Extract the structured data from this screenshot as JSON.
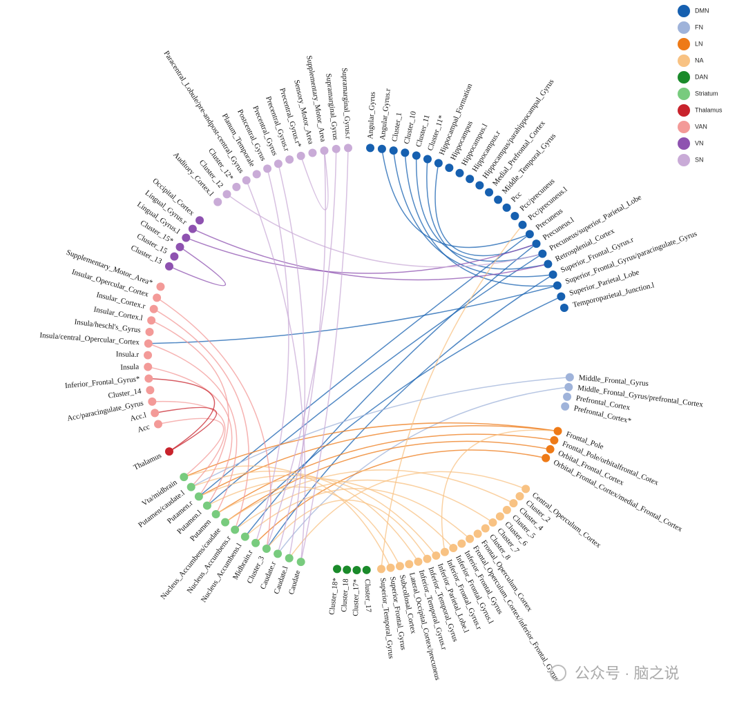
{
  "groups": [
    {
      "name": "DMN",
      "color": "#1660b0",
      "nodes": [
        "Angular_Gyrus",
        "Angular_Gyrus.r",
        "Cluster_1",
        "Cluster_10",
        "Cluster_11",
        "Cluster_11*",
        "Hippocampal_Formation",
        "Hippocampus",
        "Hippocampus.l",
        "Hippocampus.r",
        "Hippocampus/parahippocampal_Gyrus",
        "Medial_Prefrontal_Cortex",
        "Middle_Temporal_Gyrus",
        "Pcc",
        "Pcc/precuneus",
        "Pcc/precuneus.l",
        "Precuneus",
        "Precuneus.l",
        "Precuneus/superior_Parietal_Lobe",
        "Retrosplenial_Cortex",
        "Superior_Frontal_Gyrus.r",
        "Superior_Frontal_Gyrus/paracingulate_Gyrus",
        "Superior_Parietal_Lobe",
        "Temporoparietal_Junction.l"
      ]
    },
    {
      "name": "FN",
      "color": "#9fb3da",
      "nodes": [
        "Middle_Frontal_Gyrus",
        "Middle_Frontal_Gyrus/prefrontal_Cortex",
        "Prefrontal_Cortex",
        "Prefrontal_Cortex*"
      ]
    },
    {
      "name": "LN",
      "color": "#ee7a17",
      "nodes": [
        "Frontal_Pole",
        "Frontal_Pole/orbitalfrontal_Cotex",
        "Orbital_Frontal_Cortex",
        "Orbital_Frontal_Cortex/medial_Frontal_Cortex"
      ]
    },
    {
      "name": "NA",
      "color": "#f8c283",
      "nodes": [
        "Central_Operculum_Cortex",
        "Cluster_2",
        "Cluster_4",
        "Cluster_5",
        "Cluster_6",
        "Cluster_7",
        "Cluster_8",
        "Frontal_Operculum_Cortex",
        "Frontal_Operculum_Cortex/inferior_Frontal_Gyrus",
        "Inferior_Frontal_Gyrus",
        "Inferior_Frontal_Gyrus.l",
        "Inferior_Frontal_Gyrus.r",
        "Inferior_Parietal_Lobe.l",
        "Inferior_Temporal_Gyrus",
        "Inferior_Temporal_Gyrus.r",
        "Lateral_Occipital_Cortex/precuneus",
        "Subcollosal_Cortex",
        "Superior_Frontal_Gyrus",
        "Superior_Temporal_Gyrus"
      ]
    },
    {
      "name": "DAN",
      "color": "#1a8a2a",
      "nodes": [
        "Cluster_17",
        "Cluster_17*",
        "Cluster_18",
        "Cluster_18*"
      ]
    },
    {
      "name": "Striatum",
      "color": "#78cb7e",
      "nodes": [
        "Caudate",
        "Caudate.l",
        "Caudate.r",
        "Cluster_3",
        "Midbrain.r",
        "Nucleus_Accumbens.l",
        "Nucleus_Accumbens.r",
        "Nucleus_Accumbens/caudate",
        "Putamen",
        "Putamen.l",
        "Putamen.r",
        "Putamen/caudate.l",
        "Vta/midbrain"
      ]
    },
    {
      "name": "Thalamus",
      "color": "#c8232c",
      "nodes": [
        "Thalamus"
      ]
    },
    {
      "name": "VAN",
      "color": "#f39a98",
      "nodes": [
        "Acc",
        "Acc.l",
        "Acc/paracingulate_Gyrus",
        "Cluster_14",
        "Inferior_Frontal_Gyrus*",
        "Insula",
        "Insula.r",
        "Insula/central_Opercular_Cortex",
        "Insula/heschl's_Gyrus",
        "Insular_Cortex.l",
        "Insular_Cortex.r",
        "Insular_Opercular_Cortex",
        "Supplementary_Motor_Area*"
      ]
    },
    {
      "name": "VN",
      "color": "#8e52b0",
      "nodes": [
        "Cluster_13",
        "Cluster_15",
        "Cluster_15*",
        "Lingual_Gyrus.l",
        "Lingual_Gyrus.r",
        "Occipital_Cortex"
      ]
    },
    {
      "name": "SN",
      "color": "#c9abd7",
      "nodes": [
        "Auditory_Cortex.l",
        "Cluster_12",
        "Cluster_12*",
        "Paracentral_Lobule/pre-andpost-central_Gyrus",
        "Planum_Temporale",
        "Postcentral_Gyrus",
        "Precentral_Gyrus",
        "Precentral_Gyrus.r",
        "Precentral_Gyrus.r*",
        "Sensory_Motor_Area",
        "Supplementary_Motor_Area",
        "Supramarginal_Gyrus",
        "Supramarginal_Gyrus.r"
      ]
    }
  ],
  "watermark": "公众号 · 脑之说"
}
